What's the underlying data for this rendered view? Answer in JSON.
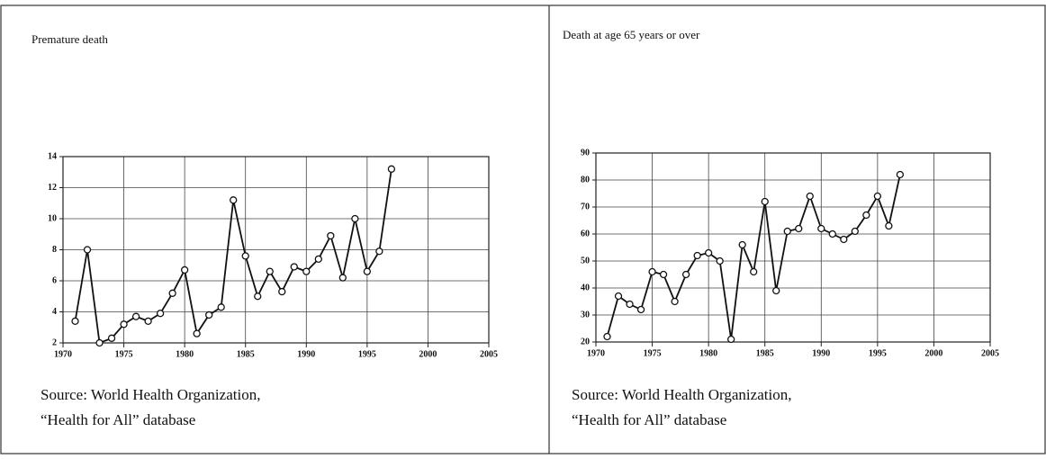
{
  "chart_data": [
    {
      "type": "line",
      "title": "Premature death",
      "x": [
        1971,
        1972,
        1973,
        1974,
        1975,
        1976,
        1977,
        1978,
        1979,
        1980,
        1981,
        1982,
        1983,
        1984,
        1985,
        1986,
        1987,
        1988,
        1989,
        1990,
        1991,
        1992,
        1993,
        1994,
        1995,
        1996,
        1997
      ],
      "values": [
        3.4,
        8.0,
        2.0,
        2.3,
        3.2,
        3.7,
        3.4,
        3.9,
        5.2,
        6.7,
        2.6,
        3.8,
        4.3,
        11.2,
        7.6,
        5.0,
        6.6,
        5.3,
        6.9,
        6.6,
        7.4,
        8.9,
        6.2,
        10.0,
        6.6,
        7.9,
        13.2
      ],
      "color": "#111",
      "xlim": [
        1970,
        2005
      ],
      "xticks": [
        1970,
        1975,
        1980,
        1985,
        1990,
        1995,
        2000,
        2005
      ],
      "ylim": [
        2,
        14
      ],
      "yticks": [
        2,
        4,
        6,
        8,
        10,
        12,
        14
      ],
      "grid": true,
      "source": [
        "Source:  World Health Organization,",
        "“Health for All” database"
      ]
    },
    {
      "type": "line",
      "title": "Death at age 65 years or over",
      "x": [
        1971,
        1972,
        1973,
        1974,
        1975,
        1976,
        1977,
        1978,
        1979,
        1980,
        1981,
        1982,
        1983,
        1984,
        1985,
        1986,
        1987,
        1988,
        1989,
        1990,
        1991,
        1992,
        1993,
        1994,
        1995,
        1996,
        1997
      ],
      "values": [
        22,
        37,
        34,
        32,
        46,
        45,
        35,
        45,
        52,
        53,
        50,
        21,
        56,
        46,
        72,
        39,
        61,
        62,
        74,
        62,
        60,
        58,
        61,
        67,
        74,
        63,
        82
      ],
      "color": "#111",
      "xlim": [
        1970,
        2005
      ],
      "xticks": [
        1970,
        1975,
        1980,
        1985,
        1990,
        1995,
        2000,
        2005
      ],
      "ylim": [
        20,
        90
      ],
      "yticks": [
        20,
        30,
        40,
        50,
        60,
        70,
        80,
        90
      ],
      "grid": true,
      "source": [
        "Source:  World Health Organization,",
        "“Health for All” database"
      ]
    }
  ]
}
